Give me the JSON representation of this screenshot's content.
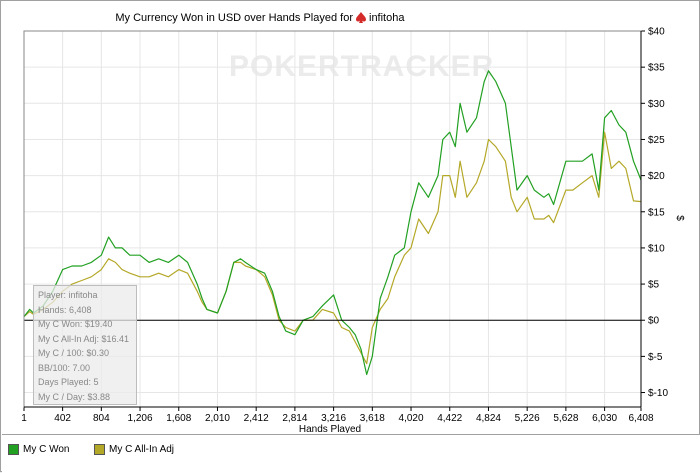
{
  "chart_data": {
    "type": "line",
    "title": "My Currency Won in USD over Hands Played for",
    "player_name": "infitoha",
    "watermark": "POKERTRACKER",
    "xlabel": "Hands Played",
    "ylabel": "$",
    "xlim": [
      1,
      6408
    ],
    "ylim": [
      -12,
      40
    ],
    "x_ticks": [
      1,
      402,
      804,
      1206,
      1608,
      2010,
      2412,
      2814,
      3216,
      3618,
      4020,
      4422,
      4824,
      5226,
      5628,
      6030,
      6408
    ],
    "x_tick_labels": [
      "1",
      "402",
      "804",
      "1,206",
      "1,608",
      "2,010",
      "2,412",
      "2,814",
      "3,216",
      "3,618",
      "4,020",
      "4,422",
      "4,824",
      "5,226",
      "5,628",
      "6,030",
      "6,408"
    ],
    "y_ticks": [
      -10,
      -5,
      0,
      5,
      10,
      15,
      20,
      25,
      30,
      35,
      40
    ],
    "y_tick_labels": [
      "$-10",
      "$-5",
      "$0",
      "$5",
      "$10",
      "$15",
      "$20",
      "$25",
      "$30",
      "$35",
      "$40"
    ],
    "grid": true,
    "legend_placement": "bottom-left",
    "series": [
      {
        "name": "My C Won",
        "color": "#22a022",
        "x": [
          1,
          60,
          100,
          200,
          300,
          402,
          500,
          600,
          700,
          804,
          880,
          950,
          1020,
          1100,
          1206,
          1300,
          1400,
          1500,
          1608,
          1700,
          1800,
          1850,
          1900,
          2010,
          2100,
          2180,
          2250,
          2300,
          2412,
          2500,
          2580,
          2650,
          2720,
          2814,
          2900,
          3000,
          3100,
          3216,
          3300,
          3380,
          3440,
          3500,
          3560,
          3618,
          3700,
          3780,
          3850,
          3950,
          4020,
          4100,
          4200,
          4300,
          4350,
          4422,
          4480,
          4530,
          4600,
          4700,
          4780,
          4824,
          4900,
          5000,
          5060,
          5120,
          5226,
          5300,
          5400,
          5450,
          5500,
          5628,
          5700,
          5800,
          5900,
          5970,
          6030,
          6100,
          6180,
          6250,
          6330,
          6408
        ],
        "y": [
          0.5,
          1.5,
          1,
          2,
          4,
          7,
          7.5,
          7.5,
          8,
          9,
          11.5,
          10,
          10,
          9,
          9,
          8,
          8.5,
          8,
          9,
          8,
          5,
          3,
          1.5,
          1,
          4,
          8,
          8.5,
          8,
          7,
          6.5,
          4,
          0.5,
          -1.5,
          -2,
          0,
          0.5,
          2,
          3.5,
          0,
          -1,
          -2,
          -4,
          -7.5,
          -5,
          3,
          6,
          9,
          10,
          15,
          19,
          17,
          20,
          25,
          26,
          24,
          30,
          26,
          28,
          33,
          34.5,
          33,
          30,
          24,
          18,
          20,
          18,
          17,
          17.5,
          16,
          22,
          22,
          22,
          23,
          18,
          28,
          29,
          27,
          26,
          22,
          19.4
        ]
      },
      {
        "name": "My C All-In Adj",
        "color": "#b4a828",
        "x": [
          1,
          60,
          100,
          200,
          300,
          402,
          500,
          600,
          700,
          804,
          880,
          950,
          1020,
          1100,
          1206,
          1300,
          1400,
          1500,
          1608,
          1700,
          1800,
          1850,
          1900,
          2010,
          2100,
          2180,
          2250,
          2300,
          2412,
          2500,
          2580,
          2650,
          2720,
          2814,
          2900,
          3000,
          3100,
          3216,
          3300,
          3380,
          3440,
          3500,
          3560,
          3618,
          3700,
          3780,
          3850,
          3950,
          4020,
          4100,
          4200,
          4300,
          4350,
          4422,
          4480,
          4530,
          4600,
          4700,
          4780,
          4824,
          4900,
          5000,
          5060,
          5120,
          5226,
          5300,
          5400,
          5450,
          5500,
          5628,
          5700,
          5800,
          5900,
          5970,
          6030,
          6100,
          6180,
          6250,
          6330,
          6408
        ],
        "y": [
          0.5,
          1.2,
          0.8,
          1.5,
          2.5,
          4,
          5,
          5.5,
          6,
          7,
          8.5,
          8,
          7,
          6.5,
          6,
          6,
          6.5,
          6,
          7,
          6.5,
          4,
          2.5,
          1.5,
          1,
          4,
          8,
          8,
          7.5,
          7,
          6,
          3.5,
          0,
          -1,
          -1.5,
          0,
          0,
          1.5,
          1,
          -1,
          -1.5,
          -3,
          -4.5,
          -6,
          -1,
          1.5,
          3,
          6,
          9,
          10,
          14,
          12,
          15,
          20,
          20,
          17,
          22,
          17,
          19,
          22,
          25,
          24,
          22,
          17,
          15,
          17,
          14,
          14,
          14.5,
          13.5,
          18,
          18,
          19,
          20,
          17,
          26,
          21,
          22,
          21,
          16.5,
          16.41
        ]
      }
    ]
  },
  "stats": [
    "Player: infitoha",
    "Hands: 6,408",
    "My C Won: $19.40",
    "My C All-In Adj: $16.41",
    "My C / 100: $0.30",
    "BB/100: 7.00",
    "Days Played: 5",
    "My C / Day: $3.88"
  ],
  "legend": {
    "items": [
      "My C Won",
      "My C All-In Adj"
    ]
  }
}
